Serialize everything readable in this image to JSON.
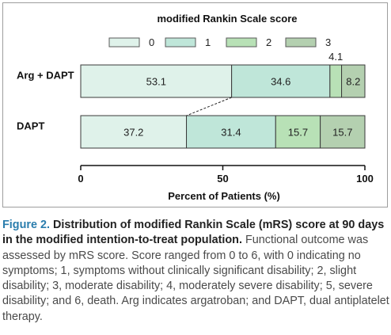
{
  "chart_data": {
    "type": "bar",
    "orientation": "horizontal",
    "stacked": true,
    "title": "modified Rankin Scale score",
    "xlabel": "Percent of Patients (%)",
    "ylabel": "",
    "xlim": [
      0,
      100
    ],
    "x_ticks": [
      "0",
      "50",
      "100"
    ],
    "legend_position": "top",
    "categories": [
      "Arg + DAPT",
      "DAPT"
    ],
    "series": [
      {
        "name": "0",
        "color": "#dff2ea",
        "values": [
          53.1,
          37.2
        ],
        "labels": [
          "53.1",
          "37.2"
        ]
      },
      {
        "name": "1",
        "color": "#bfe6d9",
        "values": [
          34.6,
          31.4
        ],
        "labels": [
          "34.6",
          "31.4"
        ]
      },
      {
        "name": "2",
        "color": "#b8e1b6",
        "values": [
          4.1,
          15.7
        ],
        "labels": [
          "4.1",
          "15.7"
        ]
      },
      {
        "name": "3",
        "color": "#b4d0b0",
        "values": [
          8.2,
          15.7
        ],
        "labels": [
          "8.2",
          "15.7"
        ]
      }
    ],
    "grid": false
  },
  "caption": {
    "figure_label": "Figure 2.",
    "title": "Distribution of modified Rankin Scale (mRS) score at 90 days in the modified intention-to-treat population.",
    "body": "Functional outcome was assessed by mRS score. Score ranged from 0 to 6, with 0 indicating no symptoms; 1, symptoms without clinically significant disability; 2, slight disability; 3, moderate disability; 4, moderately severe disability; 5, severe disability; and 6, death. Arg indicates argatroban; and DAPT, dual antiplatelet therapy."
  }
}
